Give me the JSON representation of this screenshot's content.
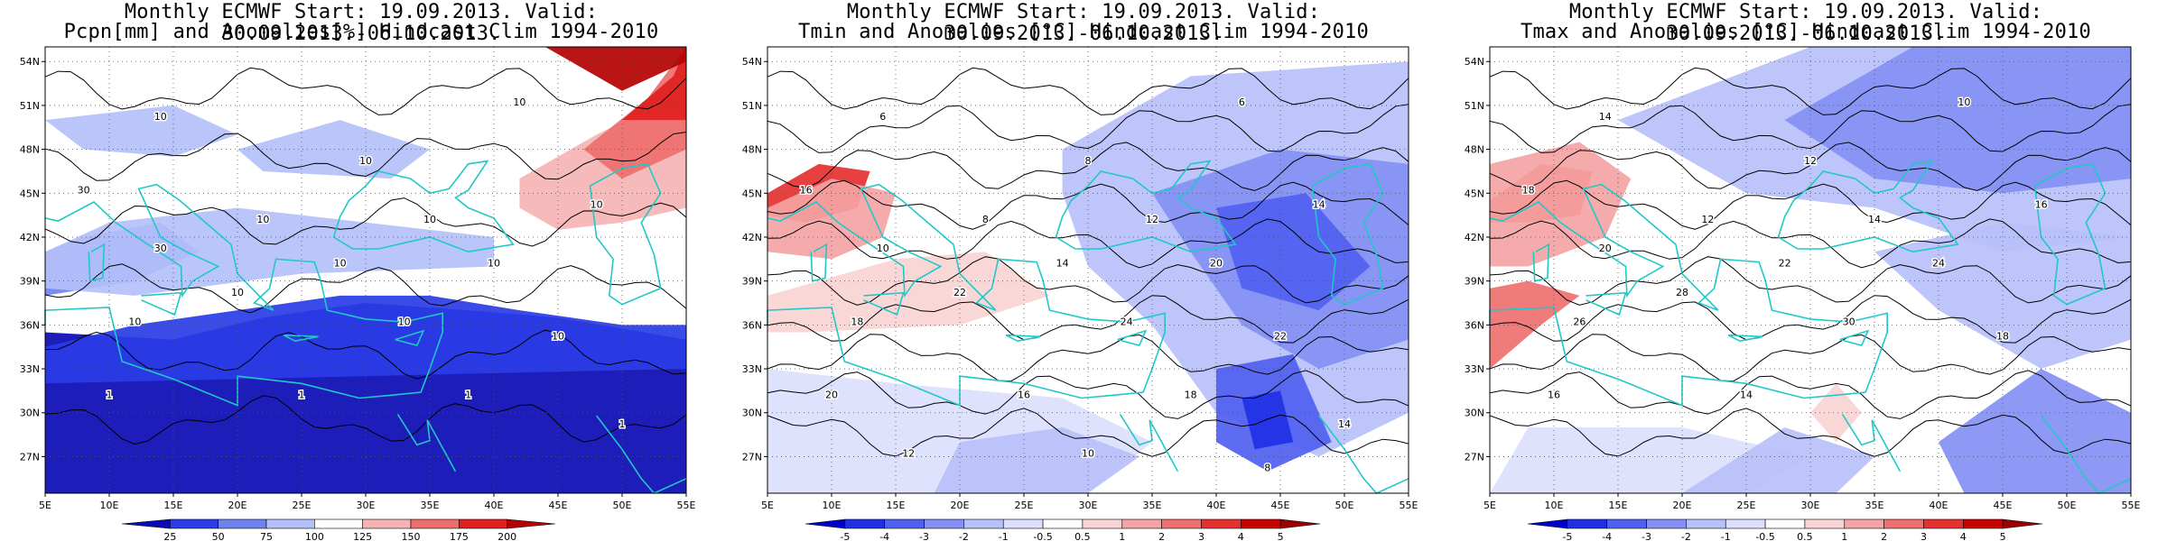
{
  "panels": [
    {
      "id": "pcpn",
      "title_line1": "Monthly ECMWF Start: 19.09.2013. Valid: 30.09.2013.-06.10.2013.",
      "title_line2": "Pcpn[mm] and Anomalies[%] Hindcast Clim 1994-2010",
      "colorbar_labels": [
        "25",
        "50",
        "75",
        "100",
        "125",
        "150",
        "175",
        "200"
      ],
      "contour_labels": [
        "10",
        "10",
        "10",
        "10",
        "10",
        "10",
        "30",
        "30",
        "10",
        "10",
        "10",
        "10",
        "10",
        "10",
        "1",
        "1",
        "1",
        "1"
      ]
    },
    {
      "id": "tmin",
      "title_line1": "Monthly ECMWF Start: 19.09.2013. Valid: 30.09.2013.-06.10.2013.",
      "title_line2": "Tmin and Anomalies [°C] Hindcast Clim 1994-2010",
      "colorbar_labels": [
        "-5",
        "-4",
        "-3",
        "-2",
        "-1",
        "-0.5",
        "0.5",
        "1",
        "2",
        "3",
        "4",
        "5"
      ],
      "contour_labels": [
        "6",
        "8",
        "6",
        "8",
        "12",
        "14",
        "16",
        "10",
        "14",
        "20",
        "18",
        "22",
        "24",
        "22",
        "20",
        "16",
        "18",
        "14",
        "12",
        "10",
        "8"
      ]
    },
    {
      "id": "tmax",
      "title_line1": "Monthly ECMWF Start: 19.09.2013. Valid: 30.09.2013.-06.10.2013.",
      "title_line2": "Tmax and Anomalies [°C] Hindcast Clim 1994-2010",
      "colorbar_labels": [
        "-5",
        "-4",
        "-3",
        "-2",
        "-1",
        "-0.5",
        "0.5",
        "1",
        "2",
        "3",
        "4",
        "5"
      ],
      "contour_labels": [
        "14",
        "12",
        "10",
        "12",
        "14",
        "16",
        "18",
        "20",
        "22",
        "24",
        "26",
        "28",
        "30",
        "18",
        "16",
        "14"
      ]
    }
  ],
  "lat_ticks": [
    "54N",
    "51N",
    "48N",
    "45N",
    "42N",
    "39N",
    "36N",
    "33N",
    "30N",
    "27N"
  ],
  "lon_ticks": [
    "5E",
    "10E",
    "15E",
    "20E",
    "25E",
    "30E",
    "35E",
    "40E",
    "45E",
    "50E",
    "55E"
  ],
  "colors": {
    "coast": "#20c8c8",
    "precip_scale": [
      "#0a0ab4",
      "#2a3ce6",
      "#6e82f0",
      "#b4c0fa",
      "#ffffff",
      "#f5b4b4",
      "#ee6e6e",
      "#e02020",
      "#b40000"
    ],
    "temp_scale": [
      "#0000c8",
      "#2030e6",
      "#5060f0",
      "#8490f4",
      "#b8c0fa",
      "#dce0fc",
      "#ffffff",
      "#fad4d4",
      "#f4a4a4",
      "#ee7070",
      "#e63030",
      "#c80000",
      "#9a0000"
    ]
  }
}
